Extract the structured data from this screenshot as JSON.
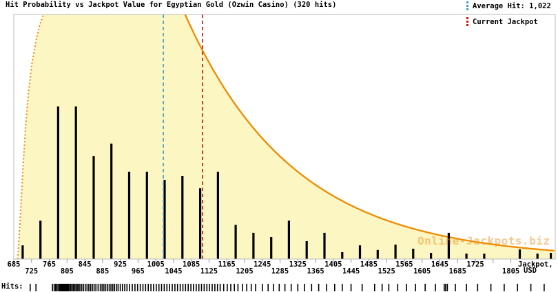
{
  "title": "Hit Probability vs Jackpot Value for Egyptian Gold (Ozwin Casino) (320 hits)",
  "watermark": "Online-Jackpots.biz",
  "hits_label": "Hits:",
  "legend": {
    "average": {
      "label": "Average Hit: 1,022",
      "color": "#3f9ec8"
    },
    "current": {
      "label": "Current Jackpot",
      "color": "#c21717"
    }
  },
  "axis_title": {
    "line1": "Jackpot,",
    "line2": "USD"
  },
  "colors": {
    "area_fill": "#fcf6c3",
    "curve": "#f08a00",
    "average_line": "#3f9ec8",
    "current_line": "#c21717",
    "bar": "#000000",
    "plot_border": "#b9b9b9",
    "tick": "#9a9a9a",
    "watermark": "#ee9222"
  },
  "chart_data": {
    "type": "bar",
    "title": "Hit Probability vs Jackpot Value for Egyptian Gold (Ozwin Casino) (320 hits)",
    "xlabel": "Jackpot, USD",
    "ylabel": "Hit Probability",
    "total_hits": 320,
    "average_hit": 1022,
    "current_jackpot": 1110,
    "x_axis": {
      "min": 685,
      "max": 1905,
      "tick_step": 40,
      "first_tick": 685,
      "last_tick": 1805,
      "top_row_labels": [
        685,
        765,
        845,
        925,
        1005,
        1085,
        1165,
        1245,
        1325,
        1405,
        1485,
        1565,
        1645,
        1725
      ],
      "bottom_row_labels": [
        725,
        805,
        885,
        965,
        1045,
        1125,
        1205,
        1285,
        1365,
        1445,
        1525,
        1605,
        1685,
        1805
      ]
    },
    "bars": {
      "bin_width": 40,
      "centers": [
        705,
        745,
        785,
        825,
        865,
        905,
        945,
        985,
        1025,
        1065,
        1105,
        1145,
        1185,
        1225,
        1265,
        1305,
        1345,
        1385,
        1425,
        1465,
        1505,
        1545,
        1585,
        1625,
        1665,
        1705,
        1745,
        1825,
        1865,
        1895
      ],
      "height_frac": [
        0.056,
        0.157,
        0.624,
        0.624,
        0.421,
        0.472,
        0.357,
        0.357,
        0.323,
        0.34,
        0.289,
        0.357,
        0.14,
        0.107,
        0.09,
        0.157,
        0.073,
        0.107,
        0.028,
        0.056,
        0.037,
        0.059,
        0.042,
        0.025,
        0.107,
        0.022,
        0.022,
        0.039,
        0.022,
        0.025
      ]
    },
    "curve": {
      "shape": "skewed distribution, clipped at plot top between rise and decay",
      "left_edge": [
        [
          694,
          0.0
        ],
        [
          700,
          0.18
        ],
        [
          706,
          0.38
        ],
        [
          712,
          0.55
        ],
        [
          718,
          0.68
        ],
        [
          726,
          0.8
        ],
        [
          736,
          0.9
        ],
        [
          744,
          0.96
        ],
        [
          752,
          1.0
        ]
      ],
      "plateau_from": 752,
      "plateau_to": 1071,
      "decay_k_per_usd": 0.00406,
      "end_value": 1905
    },
    "rug_values": [
      722,
      735,
      772,
      776,
      779,
      782,
      785,
      788,
      790,
      792,
      794,
      796,
      798,
      800,
      802,
      804,
      806,
      808,
      810,
      813,
      816,
      819,
      822,
      825,
      828,
      831,
      834,
      838,
      842,
      846,
      850,
      854,
      858,
      862,
      866,
      870,
      875,
      880,
      884,
      888,
      892,
      896,
      900,
      904,
      908,
      912,
      916,
      920,
      925,
      930,
      935,
      940,
      946,
      952,
      958,
      964,
      970,
      976,
      982,
      988,
      994,
      1000,
      1006,
      1012,
      1018,
      1024,
      1030,
      1036,
      1042,
      1048,
      1054,
      1060,
      1066,
      1072,
      1078,
      1084,
      1090,
      1096,
      1102,
      1108,
      1114,
      1120,
      1126,
      1132,
      1138,
      1144,
      1150,
      1158,
      1166,
      1174,
      1182,
      1190,
      1200,
      1210,
      1220,
      1230,
      1245,
      1258,
      1270,
      1283,
      1296,
      1310,
      1325,
      1340,
      1356,
      1372,
      1390,
      1408,
      1425,
      1445,
      1470,
      1498,
      1515,
      1530,
      1550,
      1570,
      1590,
      1612,
      1635,
      1655,
      1658,
      1662,
      1680,
      1705,
      1730,
      1760,
      1790,
      1820,
      1850,
      1880
    ]
  }
}
